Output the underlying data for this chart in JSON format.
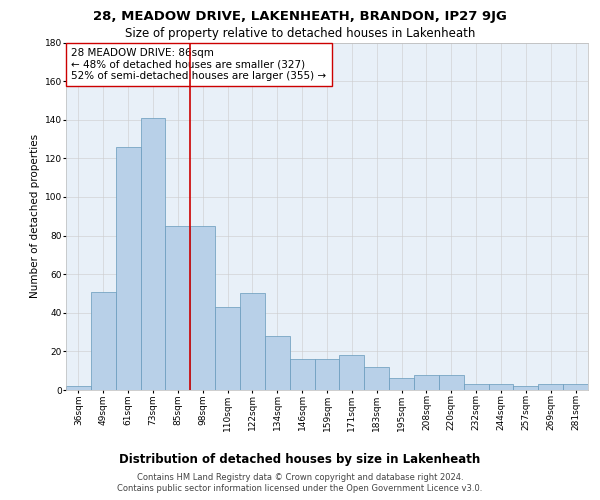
{
  "title": "28, MEADOW DRIVE, LAKENHEATH, BRANDON, IP27 9JG",
  "subtitle": "Size of property relative to detached houses in Lakenheath",
  "xlabel": "Distribution of detached houses by size in Lakenheath",
  "ylabel": "Number of detached properties",
  "categories": [
    "36sqm",
    "49sqm",
    "61sqm",
    "73sqm",
    "85sqm",
    "98sqm",
    "110sqm",
    "122sqm",
    "134sqm",
    "146sqm",
    "159sqm",
    "171sqm",
    "183sqm",
    "195sqm",
    "208sqm",
    "220sqm",
    "232sqm",
    "244sqm",
    "257sqm",
    "269sqm",
    "281sqm"
  ],
  "values": [
    2,
    51,
    126,
    141,
    85,
    85,
    43,
    50,
    28,
    16,
    16,
    18,
    12,
    6,
    8,
    8,
    3,
    3,
    2,
    3,
    3
  ],
  "bar_color": "#b8d0e8",
  "bar_edgecolor": "#6699bb",
  "bar_linewidth": 0.5,
  "vline_x": 4.5,
  "vline_color": "#cc0000",
  "vline_linewidth": 1.2,
  "annotation_text": "28 MEADOW DRIVE: 86sqm\n← 48% of detached houses are smaller (327)\n52% of semi-detached houses are larger (355) →",
  "annotation_box_edgecolor": "#cc0000",
  "annotation_box_facecolor": "#ffffff",
  "ylim": [
    0,
    180
  ],
  "yticks": [
    0,
    20,
    40,
    60,
    80,
    100,
    120,
    140,
    160,
    180
  ],
  "grid_color": "#cccccc",
  "background_color": "#ffffff",
  "axes_facecolor": "#e8f0f8",
  "footer_line1": "Contains HM Land Registry data © Crown copyright and database right 2024.",
  "footer_line2": "Contains public sector information licensed under the Open Government Licence v3.0.",
  "title_fontsize": 9.5,
  "subtitle_fontsize": 8.5,
  "xlabel_fontsize": 8.5,
  "ylabel_fontsize": 7.5,
  "tick_fontsize": 6.5,
  "footer_fontsize": 6,
  "annotation_fontsize": 7.5
}
